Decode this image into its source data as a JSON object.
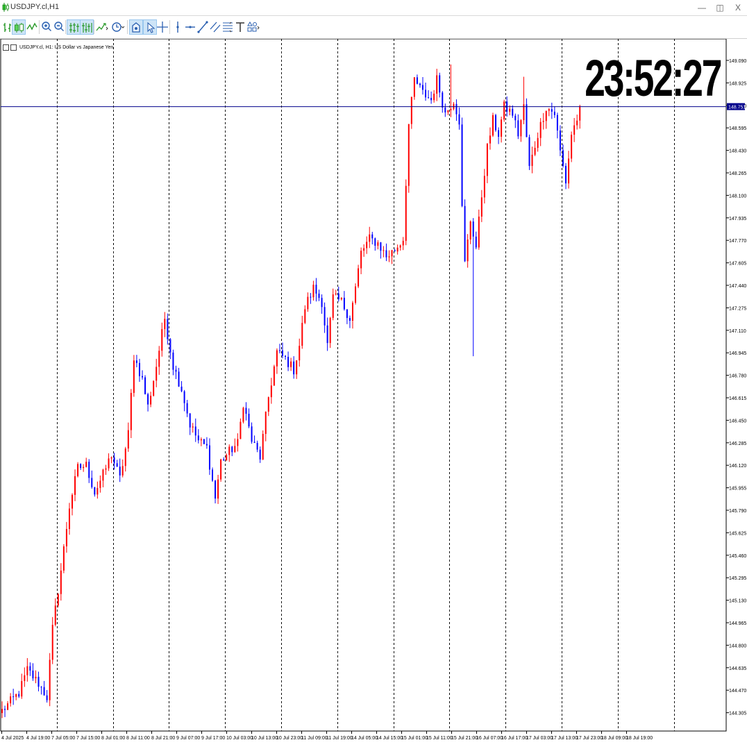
{
  "window": {
    "title": "USDJPY.cl,H1",
    "controls": [
      "minimize-icon",
      "restore-icon",
      "close-icon"
    ]
  },
  "toolbar": {
    "buttons": [
      {
        "name": "bar-chart-icon",
        "active": false
      },
      {
        "name": "candlestick-icon",
        "active": true
      },
      {
        "name": "line-chart-icon",
        "active": false
      },
      {
        "name": "zoom-in-icon",
        "active": false
      },
      {
        "name": "zoom-out-icon",
        "active": false
      },
      {
        "name": "tile-windows-icon",
        "active": true
      },
      {
        "name": "chart-shift-icon",
        "active": true
      },
      {
        "name": "indicators-icon",
        "active": false
      },
      {
        "name": "timeframe-clock-icon",
        "active": false
      },
      {
        "name": "templates-icon",
        "active": true
      },
      {
        "name": "cursor-icon",
        "active": true
      },
      {
        "name": "crosshair-icon",
        "active": false
      },
      {
        "name": "vertical-line-icon",
        "active": false
      },
      {
        "name": "horizontal-line-icon",
        "active": false
      },
      {
        "name": "trendline-icon",
        "active": false
      },
      {
        "name": "equidistant-channel-icon",
        "active": false
      },
      {
        "name": "fibonacci-icon",
        "active": false
      },
      {
        "name": "text-icon",
        "active": false
      },
      {
        "name": "shapes-icon",
        "active": false
      }
    ]
  },
  "chart_data": {
    "type": "candlestick",
    "symbol_label": "USDJPY.cl, H1:  US Dollar vs Japanese Yen",
    "clock": "23:52:27",
    "current_price": "148.751",
    "colors": {
      "bull": "#ff0000",
      "bear": "#0000ff",
      "price_line": "#00008b",
      "grid": "#000000"
    },
    "y_ticks": [
      "149.090",
      "148.925",
      "148.760",
      "148.595",
      "148.430",
      "148.265",
      "148.100",
      "147.935",
      "147.770",
      "147.605",
      "147.440",
      "147.275",
      "147.110",
      "146.945",
      "146.780",
      "146.615",
      "146.450",
      "146.285",
      "146.120",
      "145.955",
      "145.790",
      "145.625",
      "145.460",
      "145.295",
      "145.130",
      "144.965",
      "144.800",
      "144.635",
      "144.470",
      "144.305"
    ],
    "x_ticks": [
      "4 Jul 2025",
      "4 Jul 19:00",
      "7 Jul 05:00",
      "7 Jul 15:00",
      "8 Jul 01:00",
      "8 Jul 11:00",
      "8 Jul 21:00",
      "9 Jul 07:00",
      "9 Jul 17:00",
      "10 Jul 03:00",
      "10 Jul 13:00",
      "10 Jul 23:00",
      "11 Jul 09:00",
      "11 Jul 19:00",
      "14 Jul 05:00",
      "14 Jul 15:00",
      "15 Jul 01:00",
      "15 Jul 11:00",
      "15 Jul 21:00",
      "16 Jul 07:00",
      "16 Jul 17:00",
      "17 Jul 03:00",
      "17 Jul 13:00",
      "17 Jul 23:00",
      "18 Jul 09:00",
      "18 Jul 19:00"
    ],
    "y_range": [
      144.22,
      149.17
    ],
    "grid": "vertical dotted separators",
    "anchors": [
      [
        0,
        144.32
      ],
      [
        6,
        144.45
      ],
      [
        9,
        144.62
      ],
      [
        13,
        144.52
      ],
      [
        16,
        144.42
      ],
      [
        18,
        144.92
      ],
      [
        21,
        145.35
      ],
      [
        24,
        145.82
      ],
      [
        27,
        146.1
      ],
      [
        30,
        146.12
      ],
      [
        33,
        145.92
      ],
      [
        36,
        146.05
      ],
      [
        39,
        146.2
      ],
      [
        42,
        146.02
      ],
      [
        45,
        146.35
      ],
      [
        47,
        146.92
      ],
      [
        50,
        146.75
      ],
      [
        52,
        146.55
      ],
      [
        55,
        146.85
      ],
      [
        58,
        147.2
      ],
      [
        61,
        146.85
      ],
      [
        64,
        146.68
      ],
      [
        67,
        146.42
      ],
      [
        70,
        146.3
      ],
      [
        73,
        146.25
      ],
      [
        76,
        145.88
      ],
      [
        78,
        146.15
      ],
      [
        81,
        146.22
      ],
      [
        84,
        146.28
      ],
      [
        86,
        146.58
      ],
      [
        89,
        146.3
      ],
      [
        92,
        146.18
      ],
      [
        95,
        146.62
      ],
      [
        98,
        146.95
      ],
      [
        101,
        146.9
      ],
      [
        104,
        146.82
      ],
      [
        106,
        147.0
      ],
      [
        108,
        147.28
      ],
      [
        111,
        147.42
      ],
      [
        114,
        147.32
      ],
      [
        116,
        147.0
      ],
      [
        118,
        147.35
      ],
      [
        121,
        147.32
      ],
      [
        124,
        147.2
      ],
      [
        126,
        147.42
      ],
      [
        128,
        147.68
      ],
      [
        131,
        147.78
      ],
      [
        134,
        147.75
      ],
      [
        137,
        147.65
      ],
      [
        140,
        147.7
      ],
      [
        143,
        147.78
      ],
      [
        145,
        148.62
      ],
      [
        147,
        148.95
      ],
      [
        150,
        148.85
      ],
      [
        153,
        148.8
      ],
      [
        155,
        148.95
      ],
      [
        158,
        148.7
      ],
      [
        161,
        148.8
      ],
      [
        163,
        148.65
      ],
      [
        164,
        148.0
      ],
      [
        165,
        147.6
      ],
      [
        167,
        147.92
      ],
      [
        169,
        147.72
      ],
      [
        171,
        148.1
      ],
      [
        173,
        148.45
      ],
      [
        175,
        148.65
      ],
      [
        177,
        148.55
      ],
      [
        179,
        148.75
      ],
      [
        182,
        148.7
      ],
      [
        184,
        148.55
      ],
      [
        186,
        148.75
      ],
      [
        188,
        148.3
      ],
      [
        191,
        148.55
      ],
      [
        194,
        148.75
      ],
      [
        197,
        148.7
      ],
      [
        199,
        148.42
      ],
      [
        201,
        148.2
      ],
      [
        203,
        148.55
      ],
      [
        206,
        148.72
      ]
    ],
    "n_bars": 207
  }
}
